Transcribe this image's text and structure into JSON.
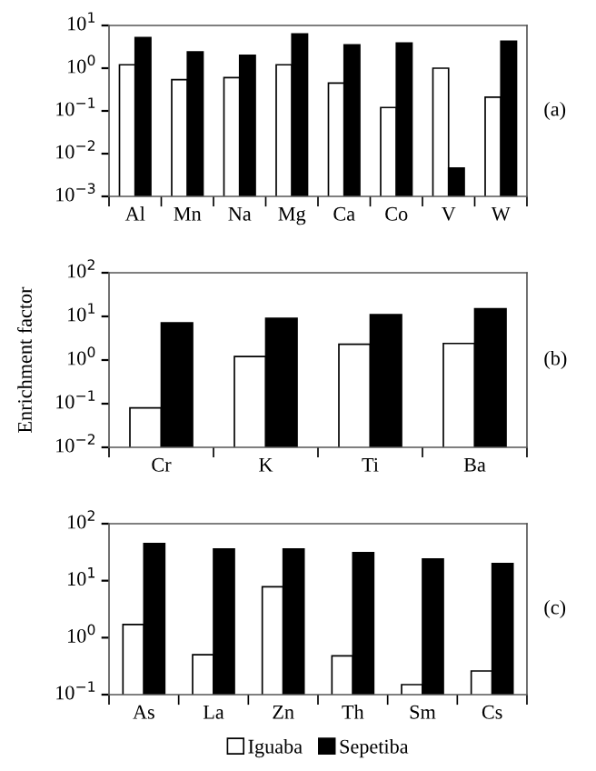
{
  "chart_data": [
    {
      "type": "bar",
      "log": true,
      "categories": [
        "Al",
        "Mn",
        "Na",
        "Mg",
        "Ca",
        "Co",
        "V",
        "W"
      ],
      "series": [
        {
          "color": "#ffffff",
          "values": [
            1.2,
            0.54,
            0.6,
            1.2,
            0.45,
            0.12,
            1.0,
            0.21
          ]
        },
        {
          "color": "#000000",
          "values": [
            5.2,
            2.4,
            2.0,
            6.3,
            3.5,
            3.9,
            0.0046,
            4.3
          ]
        }
      ],
      "ylim": [
        0.001,
        10
      ],
      "yticks": [
        {
          "value": 0.001,
          "label": "10$^{−3}$"
        },
        {
          "value": 0.01,
          "label": "10$^{−2}$"
        },
        {
          "value": 0.1,
          "label": "10$^{−1}$"
        },
        {
          "value": 1,
          "label": "10$^{0}$"
        },
        {
          "value": 10,
          "label": "10$^{1}$"
        }
      ],
      "annotations": [
        "(a)"
      ],
      "grid": false,
      "legend": false
    },
    {
      "type": "bar",
      "log": true,
      "categories": [
        "Cr",
        "K",
        "Ti",
        "Ba"
      ],
      "ylabel": "Enrichment factor",
      "series": [
        {
          "color": "#ffffff",
          "values": [
            0.08,
            1.2,
            2.3,
            2.4
          ]
        },
        {
          "color": "#000000",
          "values": [
            7.1,
            9.1,
            11,
            15
          ]
        }
      ],
      "ylim": [
        0.01,
        100
      ],
      "yticks": [
        {
          "value": 0.01,
          "label": "10$^{−2}$"
        },
        {
          "value": 0.1,
          "label": "10$^{−1}$"
        },
        {
          "value": 1,
          "label": "10$^{0}$"
        },
        {
          "value": 10,
          "label": "10$^{1}$"
        },
        {
          "value": 100,
          "label": "10$^{2}$"
        }
      ],
      "annotations": [
        "(b)"
      ],
      "grid": false,
      "legend": false
    },
    {
      "type": "bar",
      "log": true,
      "categories": [
        "As",
        "La",
        "Zn",
        "Th",
        "Sm",
        "Cs"
      ],
      "series": [
        {
          "name": "Iguaba",
          "color": "#ffffff",
          "values": [
            1.7,
            0.5,
            7.8,
            0.48,
            0.15,
            0.26
          ]
        },
        {
          "name": "Sepetiba",
          "color": "#000000",
          "values": [
            45,
            36,
            36,
            31,
            24,
            20
          ]
        }
      ],
      "ylim": [
        0.1,
        100
      ],
      "yticks": [
        {
          "value": 0.1,
          "label": "10$^{−1}$"
        },
        {
          "value": 1,
          "label": "10$^{0}$"
        },
        {
          "value": 10,
          "label": "10$^{1}$"
        },
        {
          "value": 100,
          "label": "10$^{2}$"
        }
      ],
      "annotations": [
        "(c)"
      ],
      "grid": false,
      "legend": "bottom"
    }
  ]
}
